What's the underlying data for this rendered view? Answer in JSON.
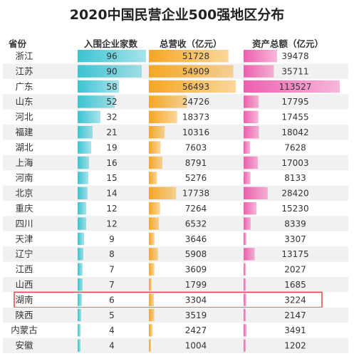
{
  "title": "2020中国民营企业500强地区分布",
  "headers": {
    "province": "省份",
    "companies": "入围企业家数",
    "revenue": "总营收（亿元）",
    "assets": "资产总额（亿元）"
  },
  "highlight_row": "湖南",
  "colors": {
    "companies": "#3cc3d3",
    "revenue": "#f6a623",
    "assets": "#ee5fae",
    "highlight": "#e04545",
    "row_stripe": "#f1f1f1"
  },
  "chart_data": {
    "type": "table",
    "columns": [
      "省份",
      "入围企业家数",
      "总营收（亿元）",
      "资产总额（亿元）"
    ],
    "rows": [
      {
        "province": "浙江",
        "companies": 96,
        "revenue": 51728,
        "assets": 39478
      },
      {
        "province": "江苏",
        "companies": 90,
        "revenue": 54909,
        "assets": 35711
      },
      {
        "province": "广东",
        "companies": 58,
        "revenue": 56493,
        "assets": 113527
      },
      {
        "province": "山东",
        "companies": 52,
        "revenue": 24726,
        "assets": 17795
      },
      {
        "province": "河北",
        "companies": 32,
        "revenue": 18373,
        "assets": 17455
      },
      {
        "province": "福建",
        "companies": 21,
        "revenue": 10316,
        "assets": 18042
      },
      {
        "province": "湖北",
        "companies": 19,
        "revenue": 7603,
        "assets": 7628
      },
      {
        "province": "上海",
        "companies": 16,
        "revenue": 8791,
        "assets": 17003
      },
      {
        "province": "河南",
        "companies": 15,
        "revenue": 5276,
        "assets": 8133
      },
      {
        "province": "北京",
        "companies": 14,
        "revenue": 17738,
        "assets": 28420
      },
      {
        "province": "重庆",
        "companies": 12,
        "revenue": 7264,
        "assets": 15230
      },
      {
        "province": "四川",
        "companies": 12,
        "revenue": 6532,
        "assets": 8339
      },
      {
        "province": "天津",
        "companies": 9,
        "revenue": 3646,
        "assets": 3307
      },
      {
        "province": "辽宁",
        "companies": 8,
        "revenue": 5908,
        "assets": 13175
      },
      {
        "province": "江西",
        "companies": 7,
        "revenue": 3609,
        "assets": 2027
      },
      {
        "province": "山西",
        "companies": 7,
        "revenue": 1799,
        "assets": 1685
      },
      {
        "province": "湖南",
        "companies": 6,
        "revenue": 3304,
        "assets": 3224
      },
      {
        "province": "陕西",
        "companies": 5,
        "revenue": 3519,
        "assets": 2147
      },
      {
        "province": "内蒙古",
        "companies": 4,
        "revenue": 2427,
        "assets": 3491
      },
      {
        "province": "安徽",
        "companies": 4,
        "revenue": 1004,
        "assets": 1202
      }
    ]
  }
}
